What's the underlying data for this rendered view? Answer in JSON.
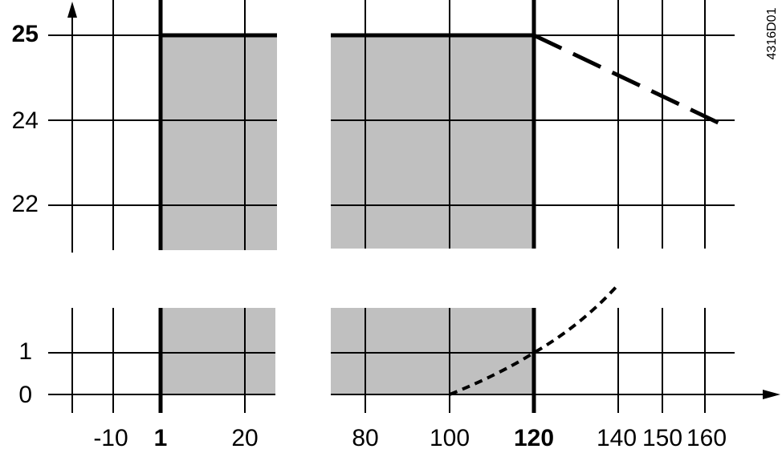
{
  "upper_axis_labels": [
    "25",
    "24",
    "22"
  ],
  "lower_axis_labels": [
    "1",
    "0"
  ],
  "x_axis_labels": [
    "-10",
    "1",
    "20",
    "80",
    "100",
    "120",
    "140",
    "150",
    "160"
  ],
  "figure_code": "4316D01"
}
